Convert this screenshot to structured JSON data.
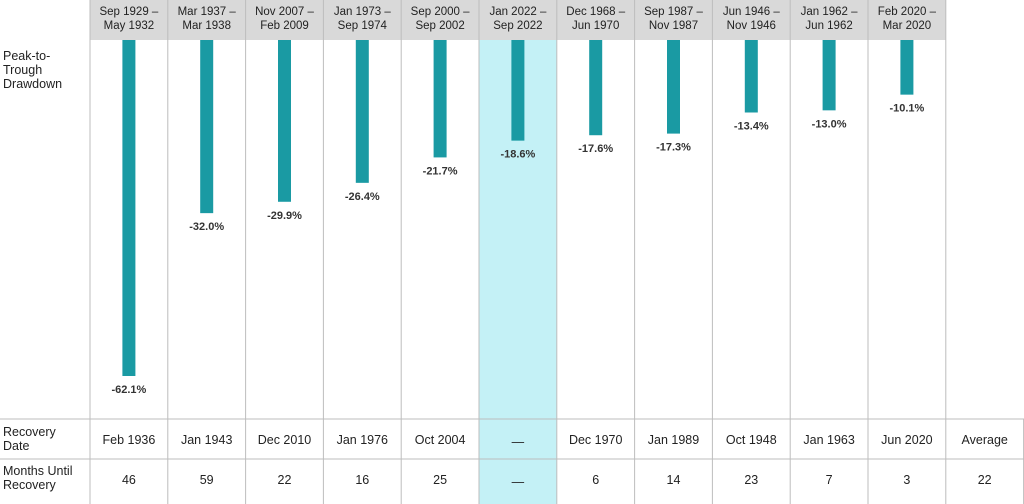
{
  "chart_data": {
    "type": "bar",
    "categories": [
      [
        "Sep 1929 –",
        "May 1932"
      ],
      [
        "Mar 1937 –",
        "Mar 1938"
      ],
      [
        "Nov 2007 –",
        "Feb 2009"
      ],
      [
        "Jan 1973 –",
        "Sep 1974"
      ],
      [
        "Sep 2000 –",
        "Sep 2002"
      ],
      [
        "Jan 2022 –",
        "Sep 2022"
      ],
      [
        "Dec 1968 –",
        "Jun 1970"
      ],
      [
        "Sep 1987 –",
        "Nov 1987"
      ],
      [
        "Jun 1946 –",
        "Nov 1946"
      ],
      [
        "Jan 1962 –",
        "Jun 1962"
      ],
      [
        "Feb 2020 –",
        "Mar 2020"
      ]
    ],
    "series": [
      {
        "name": "",
        "values": [
          -62.1,
          -32.0,
          -29.9,
          -26.4,
          -21.7,
          -18.6,
          -17.6,
          -17.3,
          -13.4,
          -13.0,
          -10.1
        ]
      }
    ],
    "value_labels": [
      "-62.1%",
      "-32.0%",
      "-29.9%",
      "-26.4%",
      "-21.7%",
      "-18.6%",
      "-17.6%",
      "-17.3%",
      "-13.4%",
      "-13.0%",
      "-10.1%"
    ],
    "highlight_index": 5,
    "row_labels": {
      "drawdown": [
        "Peak-to-",
        "Trough",
        "Drawdown"
      ],
      "recovery_date": [
        "Recovery",
        "Date"
      ],
      "months": [
        "Months Until",
        "Recovery"
      ]
    },
    "recovery_dates": [
      "Feb 1936",
      "Jan 1943",
      "Dec 2010",
      "Jan 1976",
      "Oct 2004",
      "—",
      "Dec 1970",
      "Jan 1989",
      "Oct 1948",
      "Jan 1963",
      "Jun 2020",
      "Average"
    ],
    "months_until_recovery": [
      "46",
      "59",
      "22",
      "16",
      "25",
      "—",
      "6",
      "14",
      "23",
      "7",
      "3",
      "22"
    ],
    "ylim": [
      -65,
      0
    ],
    "colors": {
      "bar": "#1a9aa3",
      "header_bg": "#d9d9d9",
      "highlight_bg": "#c4f1f6",
      "grid": "#bdbdbd"
    }
  }
}
